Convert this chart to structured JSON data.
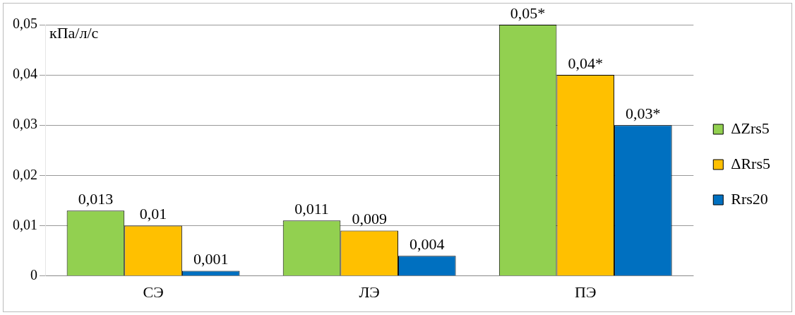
{
  "chart_data": {
    "type": "bar",
    "ylabel": "кПа/л/с",
    "categories": [
      "СЭ",
      "ЛЭ",
      "ПЭ"
    ],
    "series": [
      {
        "name": "ΔZrs5",
        "color": "#92d050",
        "values": [
          0.013,
          0.011,
          0.05
        ],
        "value_labels": [
          "0,013",
          "0,011",
          "0,05*"
        ]
      },
      {
        "name": "ΔRrs5",
        "color": "#ffc000",
        "values": [
          0.01,
          0.009,
          0.04
        ],
        "value_labels": [
          "0,01",
          "0,009",
          "0,04*"
        ]
      },
      {
        "name": "Rrs20",
        "color": "#0070c0",
        "values": [
          0.001,
          0.004,
          0.03
        ],
        "value_labels": [
          "0,001",
          "0,004",
          "0,03*"
        ]
      }
    ],
    "ylim": [
      0,
      0.05
    ],
    "yticks": [
      0,
      {
        "value": 0.01,
        "label": "0,01"
      },
      {
        "value": 0.02,
        "label": "0,02"
      },
      {
        "value": 0.03,
        "label": "0,03"
      },
      {
        "value": 0.04,
        "label": "0,04"
      },
      {
        "value": 0.05,
        "label": "0,05"
      }
    ],
    "grid": "y",
    "legend": "right"
  }
}
